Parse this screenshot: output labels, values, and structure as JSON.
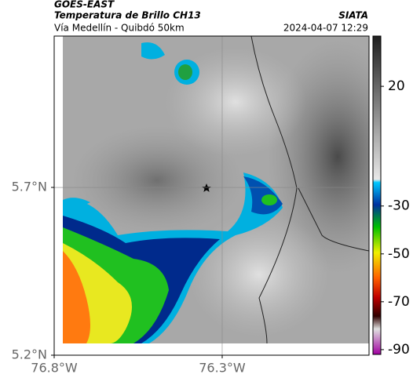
{
  "header": {
    "satellite": "GOES-EAST",
    "title": "Temperatura de Brillo CH13",
    "subtitle": "Vía Medellín - Quibdó 50km",
    "source": "SIATA",
    "datetime": "2024-04-07 12:29"
  },
  "map": {
    "xlim": [
      -76.8,
      -75.863
    ],
    "ylim": [
      5.2,
      6.151
    ],
    "xticks": [
      {
        "value": -76.8,
        "label": "76.8°W"
      },
      {
        "value": -76.3,
        "label": "76.3°W"
      }
    ],
    "yticks": [
      {
        "value": 5.7,
        "label": "5.7°N"
      },
      {
        "value": 5.2,
        "label": "5.2°N"
      }
    ],
    "grid": true
  },
  "colorbar": {
    "lim": [
      41,
      -92
    ],
    "ticks": [
      20,
      -30,
      -50,
      -70,
      -90
    ]
  }
}
